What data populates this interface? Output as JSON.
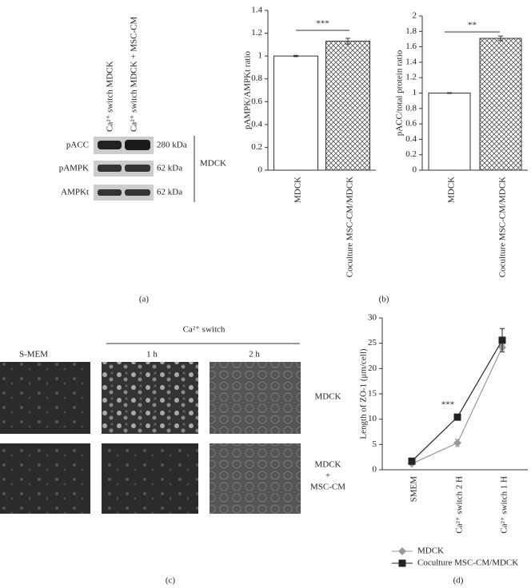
{
  "panel_labels": [
    "(a)",
    "(b)",
    "(c)",
    "(d)"
  ],
  "blot": {
    "columns": [
      "Ca²⁺ switch MDCK",
      "Ca²⁺ switch MDCK + MSC-CM"
    ],
    "rows": [
      {
        "protein": "pACC",
        "size": "280 kDa"
      },
      {
        "protein": "pAMPK",
        "size": "62 kDa"
      },
      {
        "protein": "AMPKt",
        "size": "62 kDa"
      }
    ],
    "cell_line": "MDCK"
  },
  "micrographs": {
    "group": "Ca²⁺ switch",
    "columns": [
      "S-MEM",
      "1 h",
      "2 h"
    ],
    "row_1": "MDCK",
    "row_2": [
      "MDCK",
      "+",
      "MSC-CM"
    ]
  },
  "chart_data": [
    {
      "type": "bar",
      "y_label": "pAMPK/AMPKt ratio",
      "categories": [
        "MDCK",
        "Coculture MSC-CM/MDCK"
      ],
      "values": [
        1.0,
        1.13
      ],
      "errors": [
        0.005,
        0.025
      ],
      "fills": [
        "#ffffff",
        "crosshatch"
      ],
      "annotation": "***",
      "ylim": [
        0,
        1.4
      ],
      "yticks": [
        0,
        0.2,
        0.4,
        0.6,
        0.8,
        1,
        1.2,
        1.4
      ]
    },
    {
      "type": "bar",
      "y_label": "pACC/total protein ratio",
      "categories": [
        "MDCK",
        "Coculture MSC-CM/MDCK"
      ],
      "values": [
        1.0,
        1.71
      ],
      "errors": [
        0.005,
        0.03
      ],
      "fills": [
        "#ffffff",
        "crosshatch"
      ],
      "annotation": "**",
      "ylim": [
        0,
        2
      ],
      "yticks": [
        0,
        0.2,
        0.4,
        0.6,
        0.8,
        1,
        1.2,
        1.4,
        1.6,
        1.8,
        2
      ]
    },
    {
      "type": "line",
      "y_label": "Length of ZO-1 (μm/cell)",
      "categories": [
        "SMEM",
        "Ca²⁺ switch 2 H",
        "Ca²⁺ switch 1 H"
      ],
      "series": [
        {
          "name": "MDCK",
          "color": "#999999",
          "marker": "diamond",
          "values": [
            1.2,
            5.3,
            24.2
          ],
          "errors": [
            0.3,
            0.7,
            0.5
          ]
        },
        {
          "name": "Coculture MSC-CM/MDCK",
          "color": "#222222",
          "marker": "square",
          "values": [
            1.7,
            10.4,
            25.6
          ],
          "errors": [
            0.2,
            0.2,
            2.3
          ]
        }
      ],
      "annotation": "***",
      "ylim": [
        0,
        30
      ],
      "yticks": [
        0,
        5,
        10,
        15,
        20,
        25,
        30
      ]
    }
  ]
}
